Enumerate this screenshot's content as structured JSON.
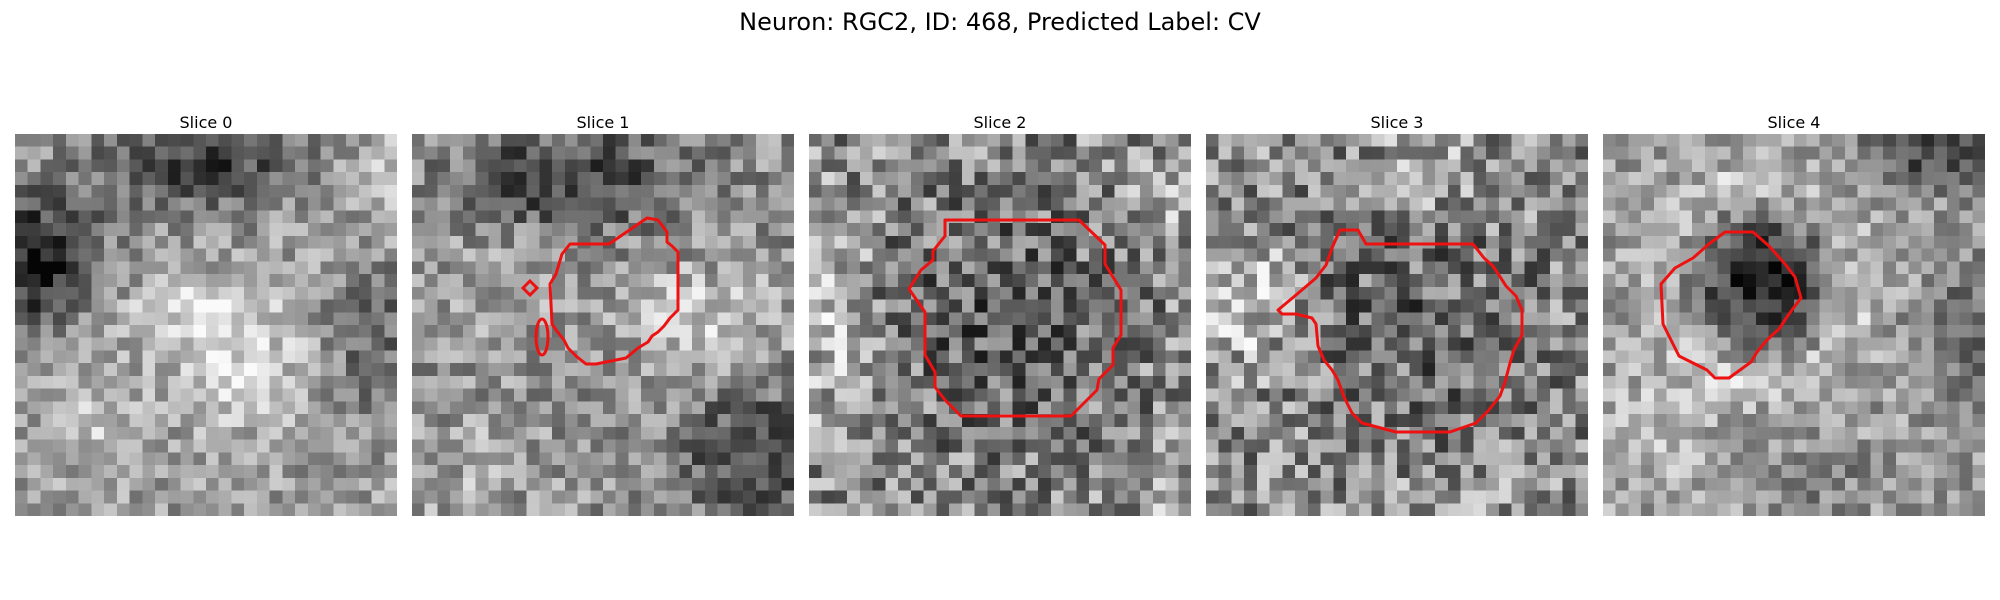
{
  "figure": {
    "title": "Neuron: RGC2, ID: 468, Predicted Label: CV"
  },
  "colors": {
    "contour": "#ee1111",
    "background": "#ffffff"
  },
  "slices": [
    {
      "label": "Slice 0",
      "has_contour": false
    },
    {
      "label": "Slice 1",
      "has_contour": true
    },
    {
      "label": "Slice 2",
      "has_contour": true
    },
    {
      "label": "Slice 3",
      "has_contour": true
    },
    {
      "label": "Slice 4",
      "has_contour": true
    }
  ]
}
